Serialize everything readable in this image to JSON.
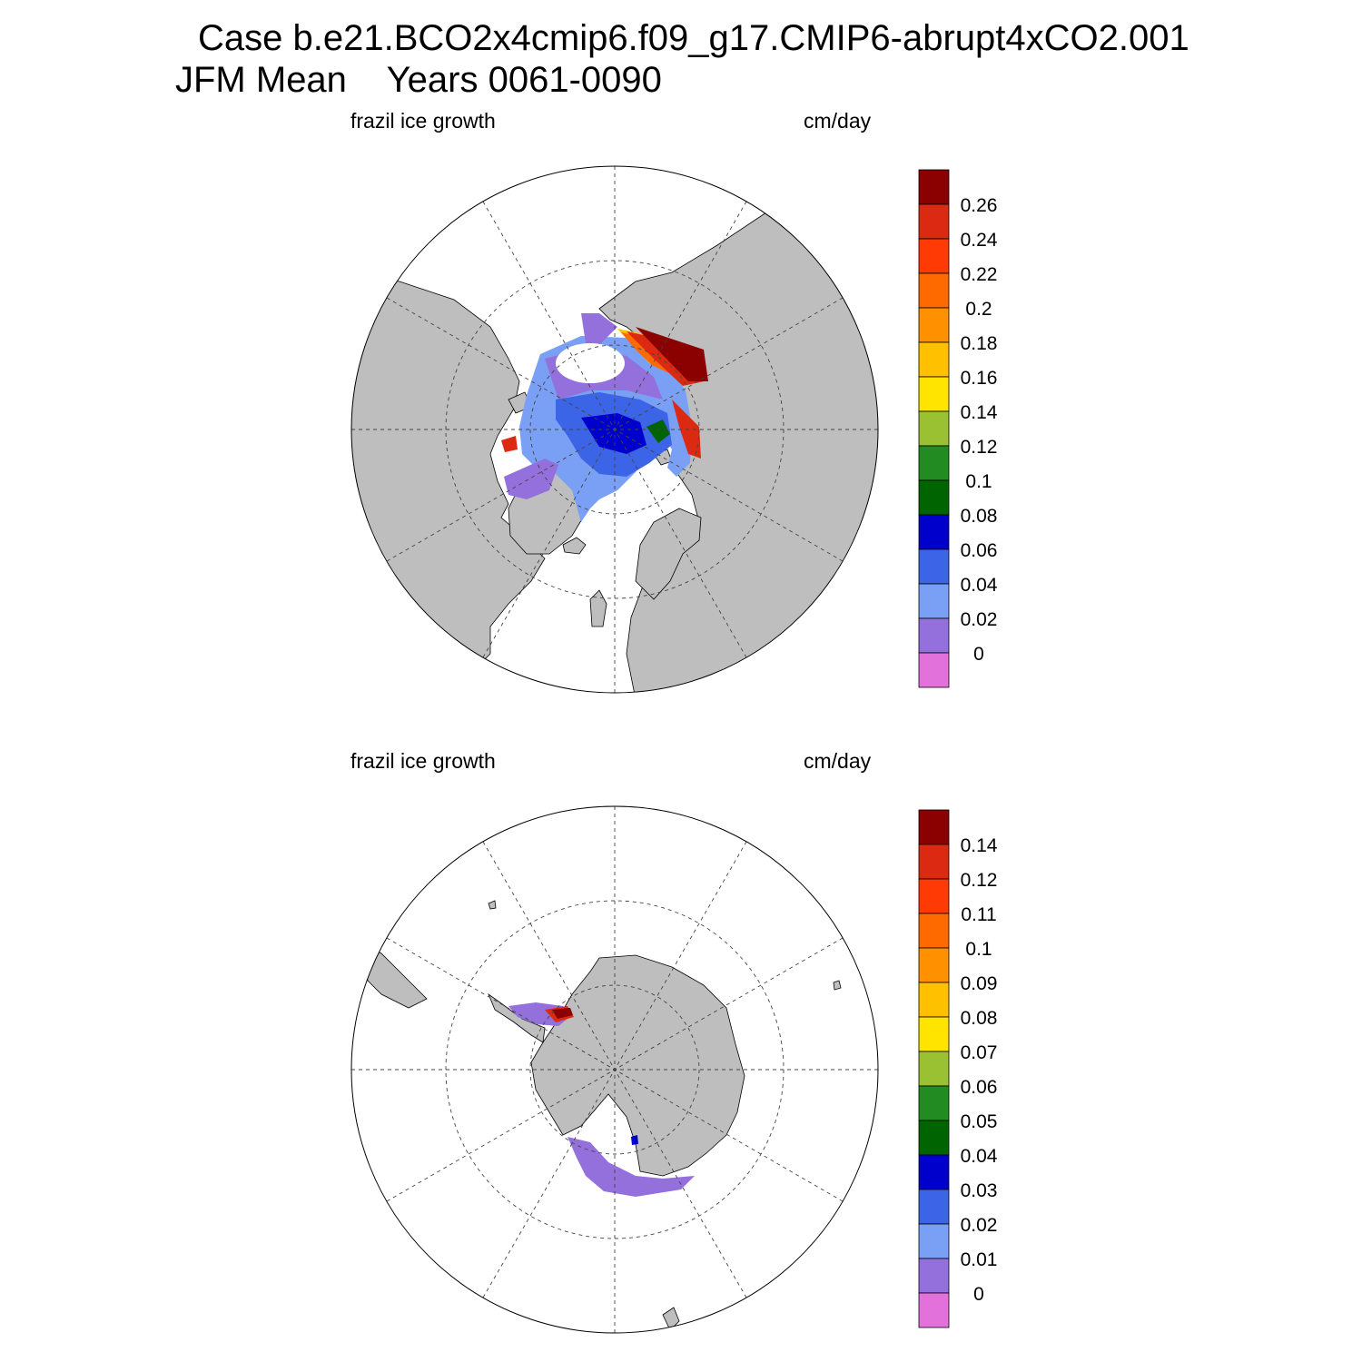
{
  "title_line1": "Case b.e21.BCO2x4cmip6.f09_g17.CMIP6-abrupt4xCO2.001",
  "title_line2": "JFM Mean    Years 0061-0090",
  "panels": [
    {
      "hemisphere": "north",
      "left_label": "frazil ice growth",
      "right_label": "cm/day",
      "colorbar": {
        "labels": [
          "0.26",
          "0.24",
          "0.22",
          "0.2",
          "0.18",
          "0.16",
          "0.14",
          "0.12",
          "0.1",
          "0.08",
          "0.06",
          "0.04",
          "0.02",
          "0"
        ]
      }
    },
    {
      "hemisphere": "south",
      "left_label": "frazil ice growth",
      "right_label": "cm/day",
      "colorbar": {
        "labels": [
          "0.14",
          "0.12",
          "0.11",
          "0.1",
          "0.09",
          "0.08",
          "0.07",
          "0.06",
          "0.05",
          "0.04",
          "0.03",
          "0.02",
          "0.01",
          "0"
        ]
      }
    }
  ],
  "colors": {
    "levels": [
      "#8b0000",
      "#dc2a12",
      "#ff3a05",
      "#ff6a00",
      "#ff9100",
      "#ffc000",
      "#ffe400",
      "#99c132",
      "#228b22",
      "#006400",
      "#0000cd",
      "#3c64e6",
      "#7aa0f5",
      "#9370db",
      "#e371db"
    ],
    "land": "#bebebe",
    "ocean": "#ffffff"
  }
}
